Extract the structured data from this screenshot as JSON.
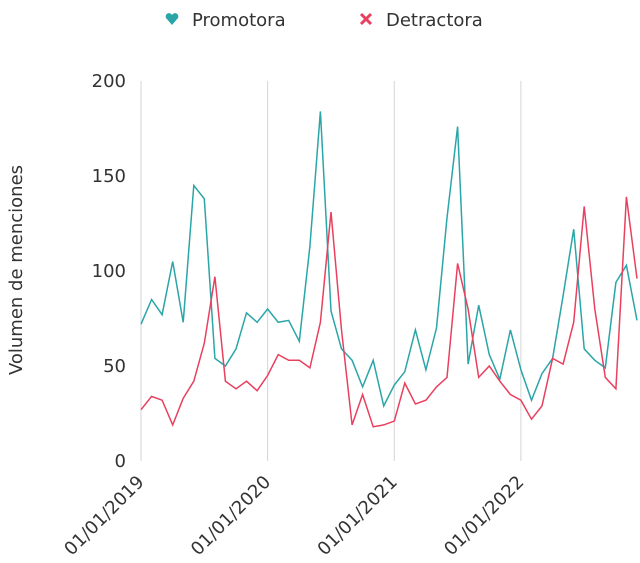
{
  "chart_data": {
    "type": "line",
    "y_label": "Volumen de menciones",
    "categories": [
      "01/01/2019",
      null,
      null,
      null,
      null,
      null,
      null,
      null,
      null,
      null,
      null,
      null,
      "01/01/2020",
      null,
      null,
      null,
      null,
      null,
      null,
      null,
      null,
      null,
      null,
      null,
      "01/01/2021",
      null,
      null,
      null,
      null,
      null,
      null,
      null,
      null,
      null,
      null,
      null,
      "01/01/2022",
      null,
      null,
      null,
      null,
      null,
      null,
      null,
      null,
      null,
      null,
      null
    ],
    "series": [
      {
        "name": "Promotora",
        "color": "#2aa5a8",
        "values": [
          72,
          85,
          77,
          105,
          73,
          145,
          138,
          54,
          50,
          59,
          78,
          73,
          80,
          73,
          74,
          63,
          113,
          184,
          79,
          59,
          53,
          39,
          53,
          29,
          40,
          47,
          69,
          48,
          70,
          128,
          176,
          51,
          82,
          56,
          43,
          69,
          48,
          32,
          46,
          54,
          87,
          122,
          59,
          53,
          49,
          94,
          103,
          74
        ]
      },
      {
        "name": "Detractora",
        "color": "#e8405e",
        "values": [
          27,
          34,
          32,
          19,
          33,
          42,
          62,
          97,
          42,
          38,
          42,
          37,
          45,
          56,
          53,
          53,
          49,
          73,
          131,
          69,
          19,
          35,
          18,
          19,
          21,
          41,
          30,
          32,
          39,
          44,
          104,
          80,
          44,
          50,
          42,
          35,
          32,
          22,
          29,
          54,
          51,
          73,
          134,
          80,
          44,
          38,
          139,
          96
        ]
      }
    ],
    "ylim": [
      0,
      200
    ],
    "yticks": [
      0,
      50,
      100,
      150,
      200
    ],
    "grid": true,
    "legend": "top"
  }
}
